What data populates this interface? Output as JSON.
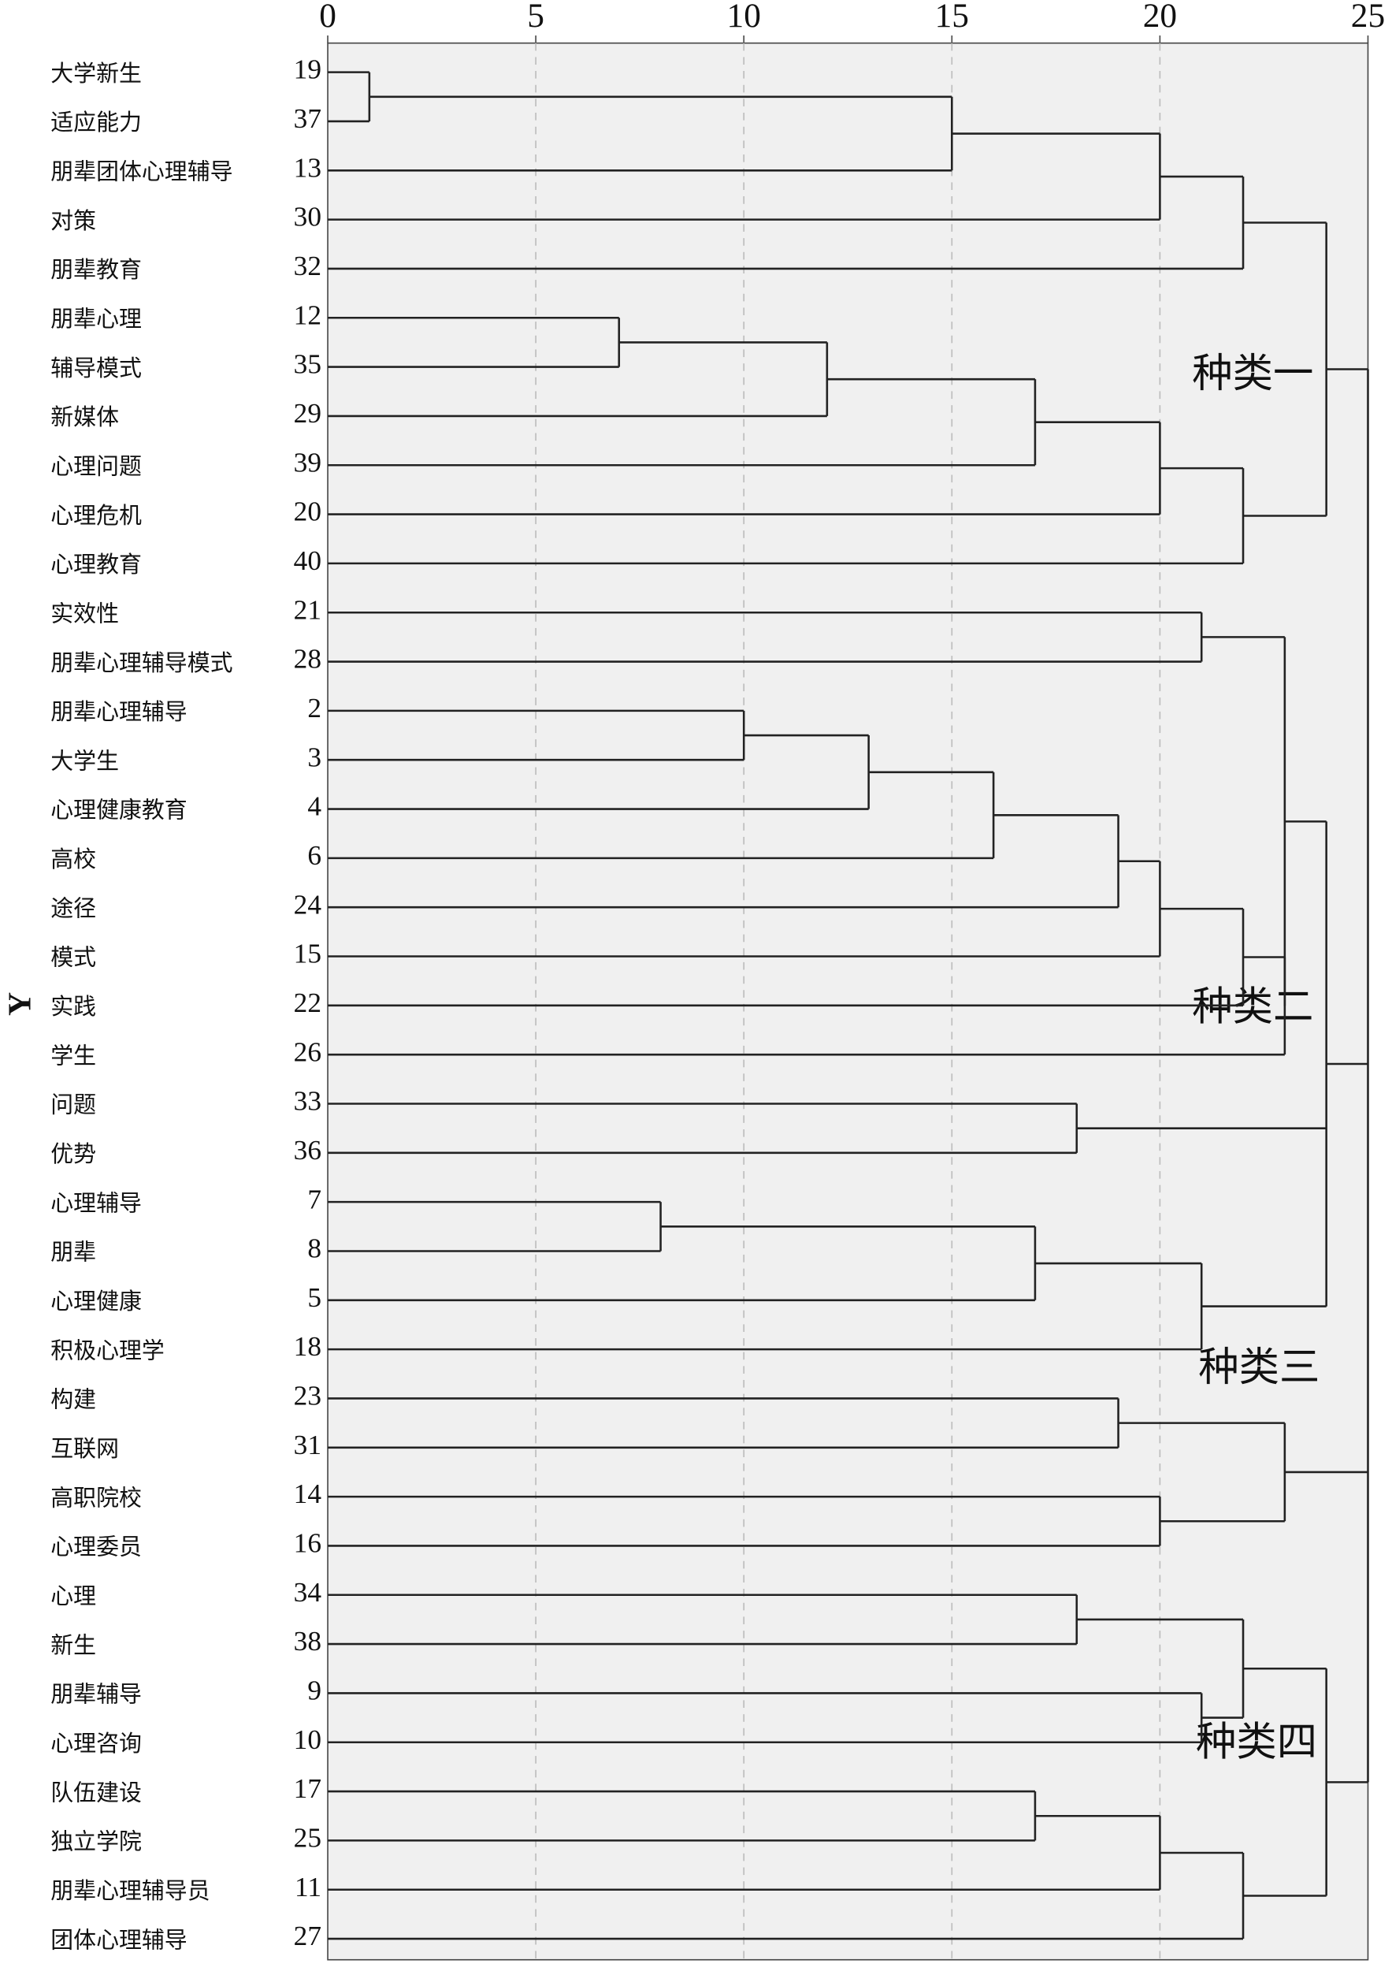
{
  "chart_data": {
    "type": "dendrogram",
    "ylabel": "Y",
    "xlim": [
      0,
      25
    ],
    "xticks": [
      0,
      5,
      10,
      15,
      20,
      25
    ],
    "grid": true,
    "annotations": [
      "种类一",
      "种类二",
      "种类三",
      "种类四"
    ],
    "tree": {
      "height": 25,
      "children": [
        {
          "height": 24,
          "children": [
            {
              "height": 22,
              "children": [
                {
                  "height": 20,
                  "children": [
                    {
                      "height": 15,
                      "children": [
                        {
                          "height": 1,
                          "children": [
                            {
                              "label": "大学新生",
                              "id": 19
                            },
                            {
                              "label": "适应能力",
                              "id": 37
                            }
                          ]
                        },
                        {
                          "label": "朋辈团体心理辅导",
                          "id": 13
                        }
                      ]
                    },
                    {
                      "label": "对策",
                      "id": 30
                    }
                  ]
                },
                {
                  "label": "朋辈教育",
                  "id": 32
                }
              ]
            },
            {
              "height": 22,
              "children": [
                {
                  "height": 20,
                  "children": [
                    {
                      "height": 17,
                      "children": [
                        {
                          "height": 12,
                          "children": [
                            {
                              "height": 7,
                              "children": [
                                {
                                  "label": "朋辈心理",
                                  "id": 12
                                },
                                {
                                  "label": "辅导模式",
                                  "id": 35
                                }
                              ]
                            },
                            {
                              "label": "新媒体",
                              "id": 29
                            }
                          ]
                        },
                        {
                          "label": "心理问题",
                          "id": 39
                        }
                      ]
                    },
                    {
                      "label": "心理危机",
                      "id": 20
                    }
                  ]
                },
                {
                  "label": "心理教育",
                  "id": 40
                }
              ]
            }
          ]
        },
        {
          "height": 24,
          "children": [
            {
              "height": 23,
              "children": [
                {
                  "height": 21,
                  "children": [
                    {
                      "label": "实效性",
                      "id": 21
                    },
                    {
                      "label": "朋辈心理辅导模式",
                      "id": 28
                    }
                  ]
                },
                {
                  "height": 23,
                  "children": [
                    {
                      "height": 22,
                      "children": [
                        {
                          "height": 20,
                          "children": [
                            {
                              "height": 19,
                              "children": [
                                {
                                  "height": 16,
                                  "children": [
                                    {
                                      "height": 13,
                                      "children": [
                                        {
                                          "height": 10,
                                          "children": [
                                            {
                                              "label": "朋辈心理辅导",
                                              "id": 2
                                            },
                                            {
                                              "label": "大学生",
                                              "id": 3
                                            }
                                          ]
                                        },
                                        {
                                          "label": "心理健康教育",
                                          "id": 4
                                        }
                                      ]
                                    },
                                    {
                                      "label": "高校",
                                      "id": 6
                                    }
                                  ]
                                },
                                {
                                  "label": "途径",
                                  "id": 24
                                }
                              ]
                            },
                            {
                              "label": "模式",
                              "id": 15
                            }
                          ]
                        },
                        {
                          "label": "实践",
                          "id": 22
                        }
                      ]
                    },
                    {
                      "label": "学生",
                      "id": 26
                    }
                  ]
                }
              ]
            },
            {
              "height": 18,
              "children": [
                {
                  "label": "问题",
                  "id": 33
                },
                {
                  "label": "优势",
                  "id": 36
                }
              ]
            },
            {
              "height": 21,
              "children": [
                {
                  "height": 17,
                  "children": [
                    {
                      "height": 8,
                      "children": [
                        {
                          "label": "心理辅导",
                          "id": 7
                        },
                        {
                          "label": "朋辈",
                          "id": 8
                        }
                      ]
                    },
                    {
                      "label": "心理健康",
                      "id": 5
                    }
                  ]
                },
                {
                  "label": "积极心理学",
                  "id": 18
                }
              ]
            }
          ]
        },
        {
          "height": 23,
          "children": [
            {
              "height": 19,
              "children": [
                {
                  "label": "构建",
                  "id": 23
                },
                {
                  "label": "互联网",
                  "id": 31
                }
              ]
            },
            {
              "height": 20,
              "children": [
                {
                  "label": "高职院校",
                  "id": 14
                },
                {
                  "label": "心理委员",
                  "id": 16
                }
              ]
            }
          ]
        },
        {
          "height": 24,
          "children": [
            {
              "height": 22,
              "children": [
                {
                  "height": 18,
                  "children": [
                    {
                      "label": "心理",
                      "id": 34
                    },
                    {
                      "label": "新生",
                      "id": 38
                    }
                  ]
                },
                {
                  "height": 21,
                  "children": [
                    {
                      "label": "朋辈辅导",
                      "id": 9
                    },
                    {
                      "label": "心理咨询",
                      "id": 10
                    }
                  ]
                }
              ]
            },
            {
              "height": 22,
              "children": [
                {
                  "height": 20,
                  "children": [
                    {
                      "height": 17,
                      "children": [
                        {
                          "label": "队伍建设",
                          "id": 17
                        },
                        {
                          "label": "独立学院",
                          "id": 25
                        }
                      ]
                    },
                    {
                      "label": "朋辈心理辅导员",
                      "id": 11
                    }
                  ]
                },
                {
                  "label": "团体心理辅导",
                  "id": 27
                }
              ]
            }
          ]
        }
      ]
    }
  }
}
